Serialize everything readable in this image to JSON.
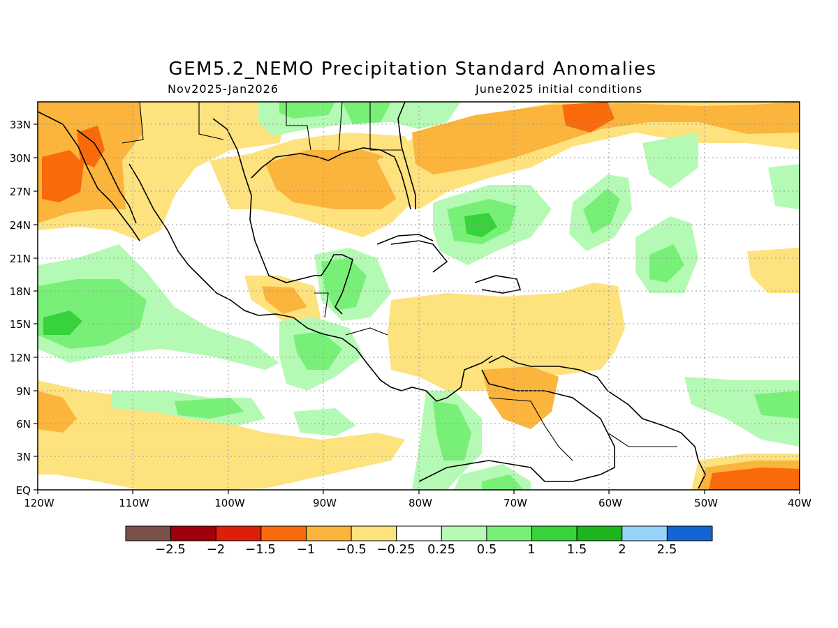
{
  "map": {
    "title": "GEM5.2_NEMO Precipitation Standard Anomalies",
    "period": "Nov2025-Jan2026",
    "init": "June2025 initial conditions",
    "lat_labels": [
      "33N",
      "30N",
      "27N",
      "24N",
      "21N",
      "18N",
      "15N",
      "12N",
      "9N",
      "6N",
      "3N",
      "EQ"
    ],
    "lon_labels": [
      "120W",
      "110W",
      "100W",
      "90W",
      "80W",
      "70W",
      "60W",
      "50W",
      "40W"
    ],
    "colors": {
      "land_outline": "#000000",
      "grid": "#9a9a9a"
    }
  },
  "colorbar": {
    "colors": [
      "#7a5048",
      "#a0000a",
      "#dc1e0a",
      "#f86a0a",
      "#fbb43c",
      "#fde27e",
      "#ffffff",
      "#b4fab4",
      "#78f078",
      "#38d23c",
      "#1eb41e",
      "#96d2fa",
      "#1464d2"
    ],
    "labels": [
      "−2.5",
      "−2",
      "−1.5",
      "−1",
      "−0.5",
      "−0.25",
      "0.25",
      "0.5",
      "1",
      "1.5",
      "2",
      "2.5"
    ]
  }
}
